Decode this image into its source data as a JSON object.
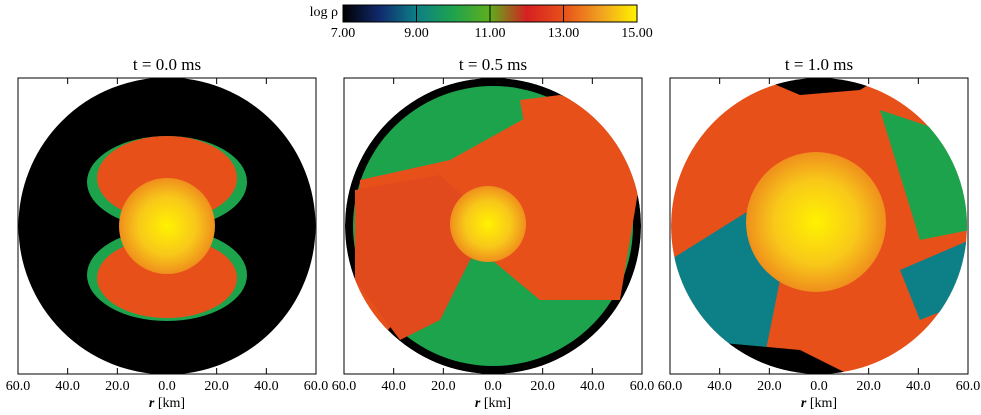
{
  "colorbar": {
    "label": "log ρ",
    "lim": [
      7,
      15
    ],
    "ticks": [
      {
        "value": 7,
        "label": "7.00"
      },
      {
        "value": 9,
        "label": "9.00"
      },
      {
        "value": 11,
        "label": "11.00"
      },
      {
        "value": 13,
        "label": "13.00"
      },
      {
        "value": 15,
        "label": "15.00"
      }
    ],
    "colors": [
      "#000000",
      "#102a6e",
      "#0d7f86",
      "#1ea34d",
      "#5fae1c",
      "#d62020",
      "#e8501a",
      "#f0a020",
      "#fff200"
    ]
  },
  "chart_data": [
    {
      "type": "density-map",
      "title": "t = 0.0 ms",
      "xlabel_var": "r",
      "xlabel_unit": "[km]",
      "xlim": [
        -60,
        60
      ],
      "xticks": [
        {
          "value": -60,
          "label": "60.0"
        },
        {
          "value": -40,
          "label": "40.0"
        },
        {
          "value": -20,
          "label": "20.0"
        },
        {
          "value": 0,
          "label": "0.0"
        },
        {
          "value": 20,
          "label": "20.0"
        },
        {
          "value": 40,
          "label": "40.0"
        },
        {
          "value": 60,
          "label": "60.0"
        }
      ]
    },
    {
      "type": "density-map",
      "title": "t = 0.5 ms",
      "xlabel_var": "r",
      "xlabel_unit": "[km]",
      "xlim": [
        -60,
        60
      ],
      "xticks": [
        {
          "value": -60,
          "label": "60.0"
        },
        {
          "value": -40,
          "label": "40.0"
        },
        {
          "value": -20,
          "label": "20.0"
        },
        {
          "value": 0,
          "label": "0.0"
        },
        {
          "value": 20,
          "label": "20.0"
        },
        {
          "value": 40,
          "label": "40.0"
        },
        {
          "value": 60,
          "label": "60.0"
        }
      ]
    },
    {
      "type": "density-map",
      "title": "t = 1.0 ms",
      "xlabel_var": "r",
      "xlabel_unit": "[km]",
      "xlim": [
        -60,
        60
      ],
      "xticks": [
        {
          "value": -60,
          "label": "60.0"
        },
        {
          "value": -40,
          "label": "40.0"
        },
        {
          "value": -20,
          "label": "20.0"
        },
        {
          "value": 0,
          "label": "0.0"
        },
        {
          "value": 20,
          "label": "20.0"
        },
        {
          "value": 40,
          "label": "40.0"
        },
        {
          "value": 60,
          "label": "60.0"
        }
      ]
    }
  ]
}
